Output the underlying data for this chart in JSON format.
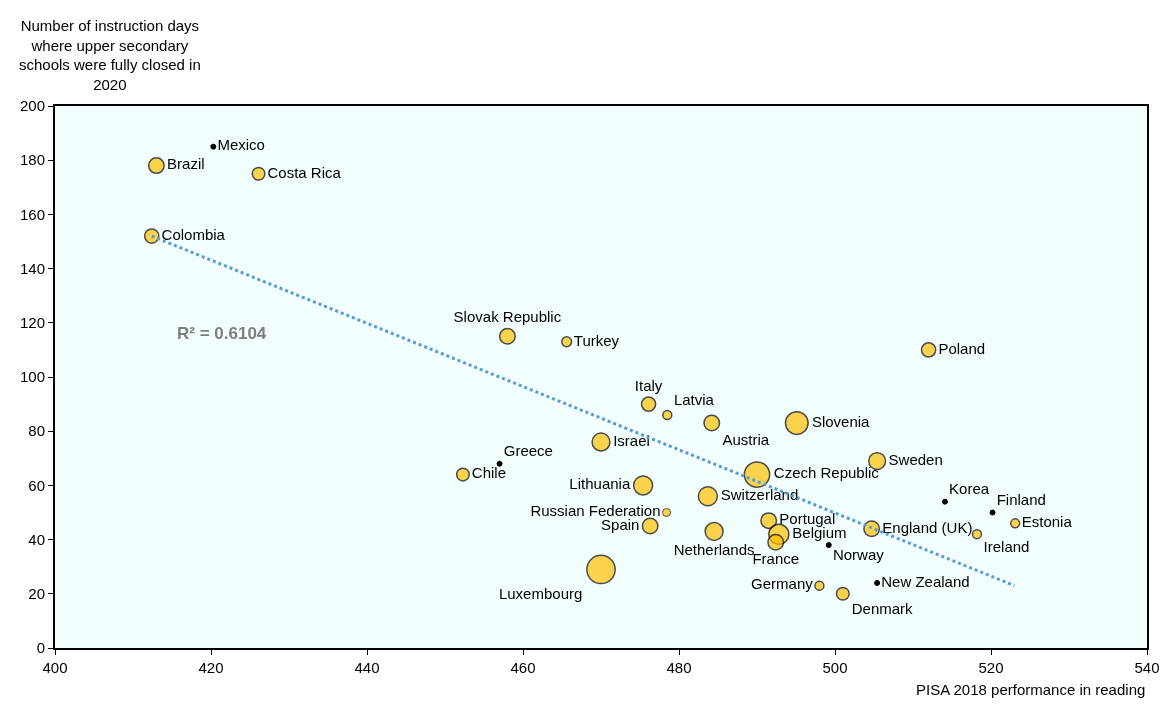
{
  "chart_data": {
    "type": "bubble",
    "ylabel": "Number of instruction days where upper secondary schools were fully closed in 2020",
    "xlabel": "PISA 2018 performance in reading",
    "annotations": [
      "R² = 0.6104"
    ],
    "xlim": [
      400,
      540
    ],
    "xticks": [
      400,
      420,
      440,
      460,
      480,
      500,
      520,
      540
    ],
    "ylim": [
      0,
      200
    ],
    "yticks": [
      0,
      20,
      40,
      60,
      80,
      100,
      120,
      140,
      160,
      180,
      200
    ],
    "grid": false,
    "series": [
      {
        "name": "Mexico",
        "color": "#000000",
        "x": [
          420.3
        ],
        "values": [
          185
        ],
        "type": "scatter"
      },
      {
        "name": "Brazil",
        "color": "#ffc000",
        "x": [
          413.0
        ],
        "values": [
          178
        ],
        "sizes": [
          0.3
        ]
      },
      {
        "name": "Costa Rica",
        "color": "#ffc000",
        "x": [
          426.1
        ],
        "values": [
          175
        ],
        "sizes": [
          0.2
        ]
      },
      {
        "name": "Colombia",
        "color": "#ffc000",
        "x": [
          412.4
        ],
        "values": [
          152
        ],
        "sizes": [
          0.25
        ]
      },
      {
        "name": "Slovak Republic",
        "color": "#ffc000",
        "x": [
          458.0
        ],
        "values": [
          115
        ],
        "sizes": [
          0.3
        ]
      },
      {
        "name": "Turkey",
        "color": "#ffc000",
        "x": [
          465.6
        ],
        "values": [
          113
        ],
        "sizes": [
          0.12
        ]
      },
      {
        "name": "Italy",
        "color": "#ffc000",
        "x": [
          476.1
        ],
        "values": [
          90
        ],
        "sizes": [
          0.25
        ]
      },
      {
        "name": "Latvia",
        "color": "#ffc000",
        "x": [
          478.5
        ],
        "values": [
          86
        ],
        "sizes": [
          0.1
        ]
      },
      {
        "name": "Austria",
        "color": "#ffc000",
        "x": [
          484.2
        ],
        "values": [
          83
        ],
        "sizes": [
          0.3
        ]
      },
      {
        "name": "Slovenia",
        "color": "#ffc000",
        "x": [
          495.1
        ],
        "values": [
          83
        ],
        "sizes": [
          0.64
        ]
      },
      {
        "name": "Israel",
        "color": "#ffc000",
        "x": [
          470.0
        ],
        "values": [
          76
        ],
        "sizes": [
          0.4
        ]
      },
      {
        "name": "Greece",
        "color": "#000000",
        "x": [
          457.0
        ],
        "values": [
          68
        ],
        "type": "scatter"
      },
      {
        "name": "Chile",
        "color": "#ffc000",
        "x": [
          452.3
        ],
        "values": [
          64
        ],
        "sizes": [
          0.2
        ]
      },
      {
        "name": "Lithuania",
        "color": "#ffc000",
        "x": [
          475.4
        ],
        "values": [
          60
        ],
        "sizes": [
          0.45
        ]
      },
      {
        "name": "Czech Republic",
        "color": "#ffc000",
        "x": [
          490.0
        ],
        "values": [
          64
        ],
        "sizes": [
          0.8
        ]
      },
      {
        "name": "Switzerland",
        "color": "#ffc000",
        "x": [
          483.7
        ],
        "values": [
          56
        ],
        "sizes": [
          0.45
        ]
      },
      {
        "name": "Russian Federation",
        "color": "#ffc000",
        "x": [
          478.4
        ],
        "values": [
          50
        ],
        "sizes": [
          0.08
        ]
      },
      {
        "name": "Spain",
        "color": "#ffc000",
        "x": [
          476.3
        ],
        "values": [
          45
        ],
        "sizes": [
          0.3
        ]
      },
      {
        "name": "Netherlands",
        "color": "#ffc000",
        "x": [
          484.5
        ],
        "values": [
          43
        ],
        "sizes": [
          0.4
        ]
      },
      {
        "name": "Portugal",
        "color": "#ffc000",
        "x": [
          491.5
        ],
        "values": [
          47
        ],
        "sizes": [
          0.3
        ]
      },
      {
        "name": "Belgium",
        "color": "#ffc000",
        "x": [
          492.8
        ],
        "values": [
          42
        ],
        "sizes": [
          0.5
        ]
      },
      {
        "name": "France",
        "color": "#ffc000",
        "x": [
          492.4
        ],
        "values": [
          39
        ],
        "sizes": [
          0.3
        ]
      },
      {
        "name": "Norway",
        "color": "#000000",
        "x": [
          499.2
        ],
        "values": [
          38
        ],
        "type": "scatter"
      },
      {
        "name": "Luxembourg",
        "color": "#ffc000",
        "x": [
          470.0
        ],
        "values": [
          29
        ],
        "sizes": [
          1
        ]
      },
      {
        "name": "Germany",
        "color": "#ffc000",
        "x": [
          498.0
        ],
        "values": [
          23
        ],
        "sizes": [
          0.1
        ]
      },
      {
        "name": "Denmark",
        "color": "#ffc000",
        "x": [
          501.0
        ],
        "values": [
          20
        ],
        "sizes": [
          0.2
        ]
      },
      {
        "name": "England (UK)",
        "color": "#ffc000",
        "x": [
          504.7
        ],
        "values": [
          44
        ],
        "sizes": [
          0.3
        ]
      },
      {
        "name": "New Zealand",
        "color": "#000000",
        "x": [
          505.4
        ],
        "values": [
          24
        ],
        "type": "scatter"
      },
      {
        "name": "Sweden",
        "color": "#ffc000",
        "x": [
          505.4
        ],
        "values": [
          69
        ],
        "sizes": [
          0.35
        ]
      },
      {
        "name": "Poland",
        "color": "#ffc000",
        "x": [
          512.0
        ],
        "values": [
          110
        ],
        "sizes": [
          0.25
        ]
      },
      {
        "name": "Korea",
        "color": "#000000",
        "x": [
          514.1
        ],
        "values": [
          54
        ],
        "type": "scatter"
      },
      {
        "name": "Finland",
        "color": "#000000",
        "x": [
          520.2
        ],
        "values": [
          50
        ],
        "type": "scatter"
      },
      {
        "name": "Estonia",
        "color": "#ffc000",
        "x": [
          523.1
        ],
        "values": [
          46
        ],
        "sizes": [
          0.1
        ]
      },
      {
        "name": "Ireland",
        "color": "#ffc000",
        "x": [
          518.2
        ],
        "values": [
          42
        ],
        "sizes": [
          0.1
        ]
      },
      {
        "type": "line",
        "color": "#5b9bd5",
        "line_style": "dotted",
        "x": [
          412.4,
          523.0
        ],
        "values": [
          152,
          23
        ]
      }
    ]
  }
}
